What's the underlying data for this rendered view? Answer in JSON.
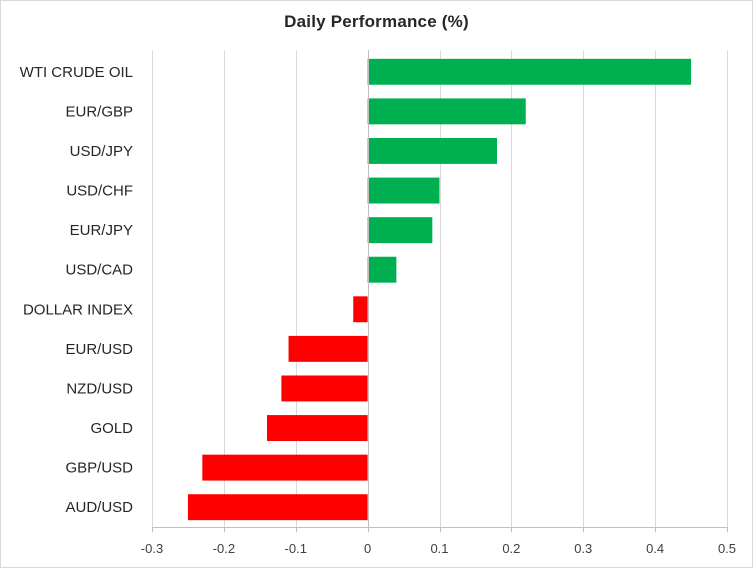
{
  "chart_data": {
    "type": "bar",
    "orientation": "horizontal",
    "title": "Daily Performance (%)",
    "xlabel": "",
    "ylabel": "",
    "categories": [
      "WTI CRUDE OIL",
      "EUR/GBP",
      "USD/JPY",
      "USD/CHF",
      "EUR/JPY",
      "USD/CAD",
      "DOLLAR INDEX",
      "EUR/USD",
      "NZD/USD",
      "GOLD",
      "GBP/USD",
      "AUD/USD"
    ],
    "values": [
      0.45,
      0.22,
      0.18,
      0.1,
      0.09,
      0.04,
      -0.02,
      -0.11,
      -0.12,
      -0.14,
      -0.23,
      -0.25
    ],
    "xlim": [
      -0.3,
      0.5
    ],
    "xticks": [
      -0.3,
      -0.2,
      -0.1,
      0,
      0.1,
      0.2,
      0.3,
      0.4,
      0.5
    ],
    "xtick_labels": [
      "-0.3",
      "-0.2",
      "-0.1",
      "0",
      "0.1",
      "0.2",
      "0.3",
      "0.4",
      "0.5"
    ],
    "grid": true,
    "legend": "none",
    "colors": {
      "positive": "#00b050",
      "negative": "#ff0000",
      "gridline": "#d9d9d9",
      "axis": "#bfbfbf"
    }
  }
}
